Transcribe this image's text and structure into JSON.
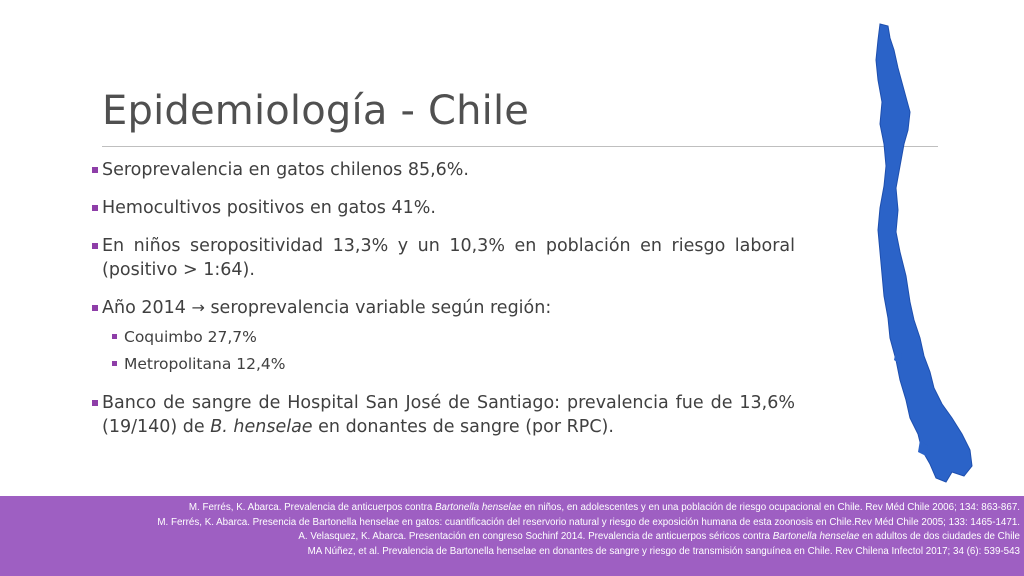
{
  "slide": {
    "title": "Epidemiología - Chile"
  },
  "bullets": {
    "item1": "Seroprevalencia en gatos chilenos 85,6%.",
    "item2": "Hemocultivos positivos en gatos 41%.",
    "item3": "En niños seropositividad 13,3% y un 10,3% en población en riesgo laboral (positivo > 1:64).",
    "item4_pre": "Año 2014",
    "item4_arrow": "→",
    "item4_post": "seroprevalencia variable según región:",
    "sub1": "Coquimbo 27,7%",
    "sub2": "Metropolitana 12,4%",
    "item5_pre": "Banco de sangre de Hospital San José de Santiago: prevalencia fue de 13,6% (19/140) de",
    "item5_em": "B. henselae",
    "item5_post": "en donantes de sangre (por RPC)."
  },
  "map": {
    "icon": "chile-map-icon",
    "color": "#2b63c8"
  },
  "colors": {
    "bullet": "#8e3ea8",
    "footer_bg": "#9e5fc2",
    "title": "#505050"
  },
  "references": {
    "r1_pre": "M. Ferrés, K. Abarca. Prevalencia de anticuerpos contra",
    "r1_em": "Bartonella henselae",
    "r1_post": "en niños, en adolescentes y en una población de riesgo ocupacional en Chile. Rev Méd Chile 2006; 134: 863-867.",
    "r2": "M. Ferrés, K. Abarca. Presencia de Bartonella henselae en gatos: cuantificación del reservorio natural y riesgo de exposición humana de esta zoonosis en Chile.Rev Méd Chile 2005; 133: 1465-1471.",
    "r3_pre": "A. Velasquez, K. Abarca. Presentación en congreso Sochinf 2014. Prevalencia de anticuerpos séricos contra",
    "r3_em": "Bartonella henselae",
    "r3_post": "en adultos de dos ciudades de Chile",
    "r4": "MA Núñez, et al. Prevalencia de Bartonella henselae en donantes de sangre y riesgo de transmisión sanguínea en Chile. Rev Chilena Infectol 2017; 34 (6): 539-543"
  }
}
